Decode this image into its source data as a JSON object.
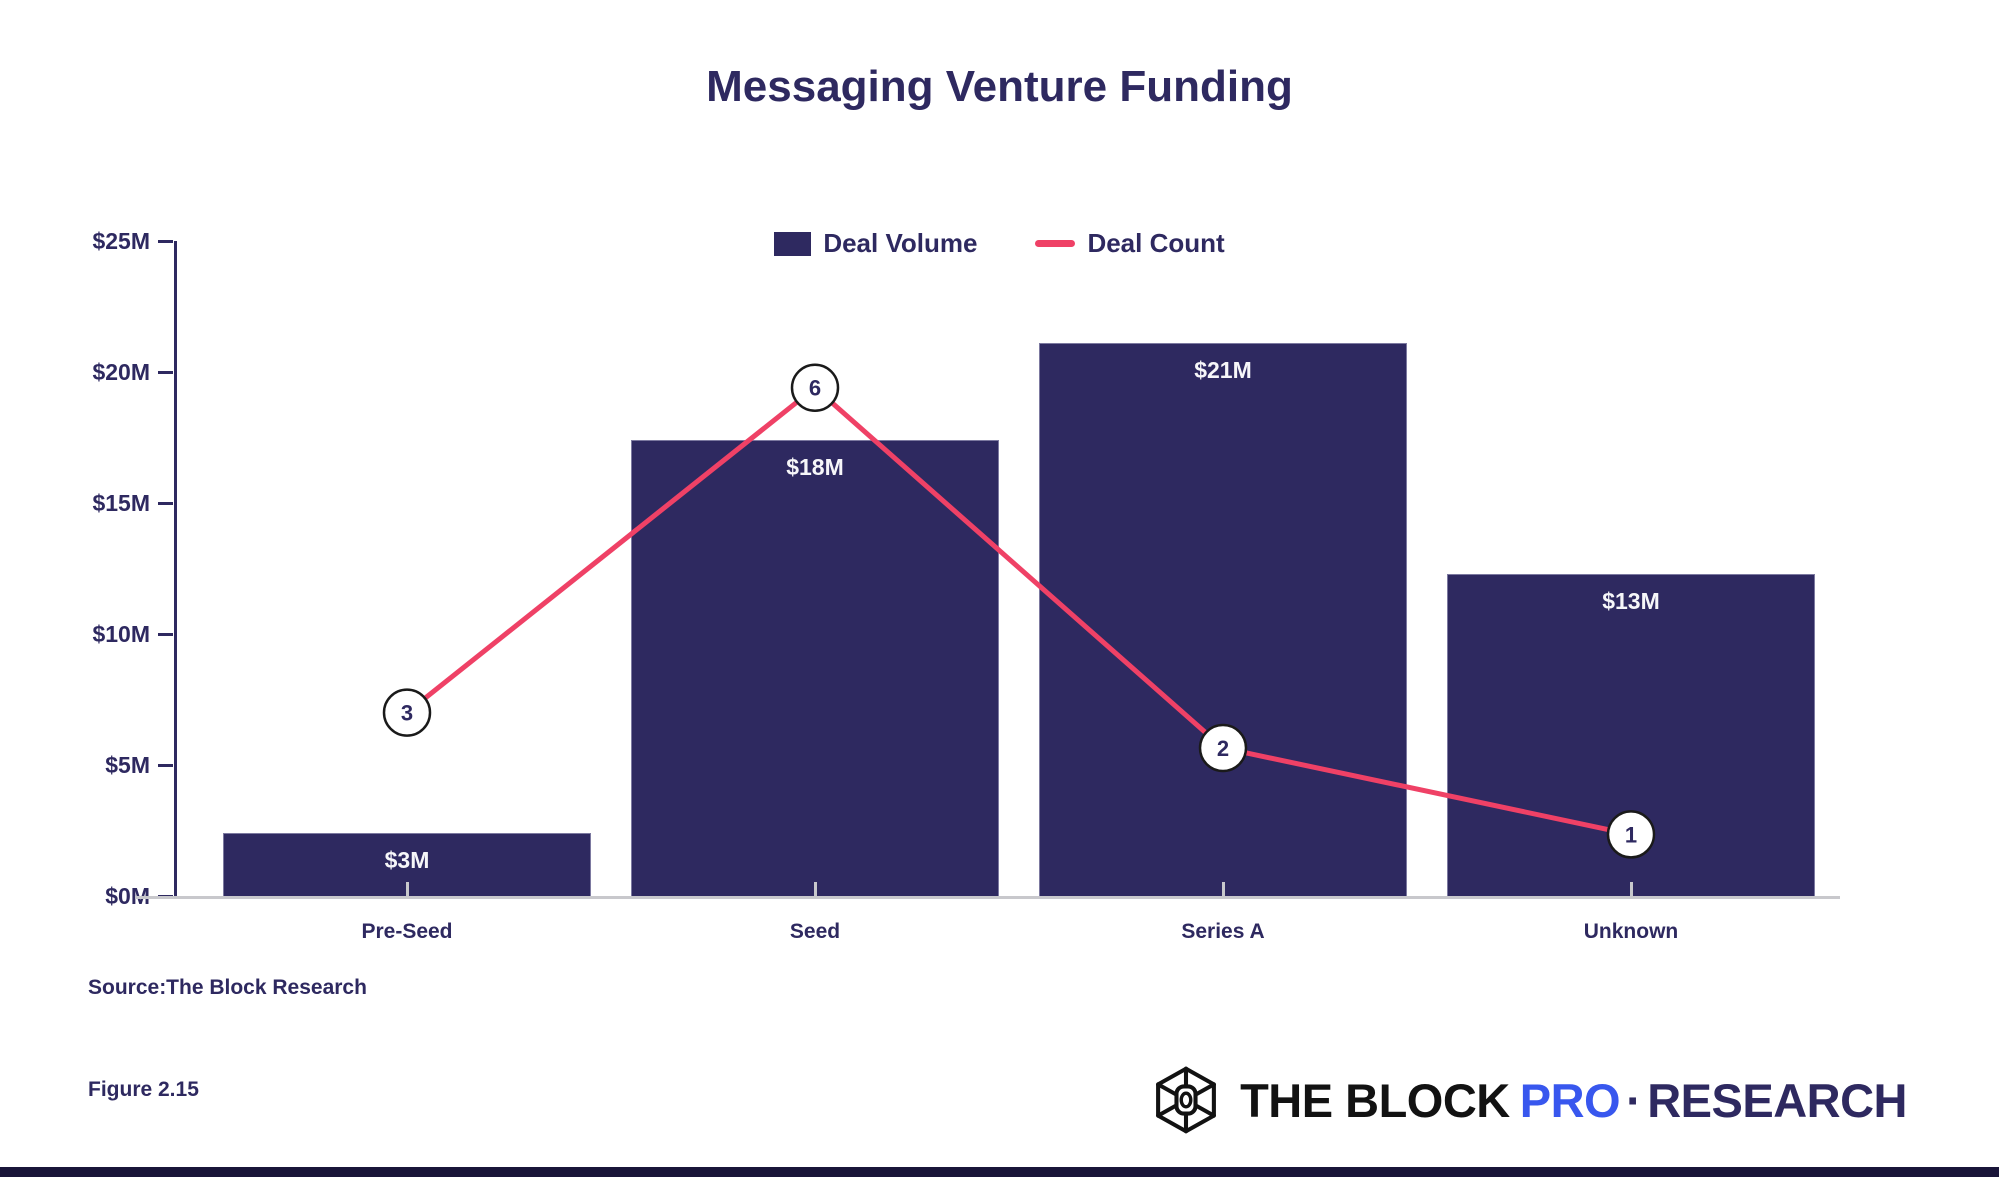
{
  "header": {
    "title": "Messaging Venture Funding"
  },
  "legend": {
    "items": [
      {
        "label": "Deal Volume",
        "type": "swatch",
        "color": "#2e2960"
      },
      {
        "label": "Deal Count",
        "type": "line",
        "color": "#ef4166"
      }
    ]
  },
  "chart_data": {
    "type": "bar",
    "title": "Messaging Venture Funding",
    "categories": [
      "Pre-Seed",
      "Seed",
      "Series A",
      "Unknown"
    ],
    "series": [
      {
        "name": "Deal Volume",
        "type": "bar",
        "values_musd": [
          3,
          18,
          21,
          13
        ],
        "bar_labels": [
          "$3M",
          "$18M",
          "$21M",
          "$13M"
        ],
        "drawn_heights_musd": [
          2.4,
          17.4,
          21.1,
          12.3
        ],
        "color": "#2e2960"
      },
      {
        "name": "Deal Count",
        "type": "line",
        "values": [
          3,
          6,
          2,
          1
        ],
        "marker_y_musd": [
          7.0,
          19.4,
          5.65,
          2.35
        ],
        "color": "#ef4166"
      }
    ],
    "y_axis": {
      "tick_labels": [
        "$25M",
        "$20M",
        "$15M",
        "$10M",
        "$5M",
        "$0M"
      ],
      "tick_values": [
        25,
        20,
        15,
        10,
        5,
        0
      ],
      "range_musd": [
        0,
        25
      ]
    },
    "legend_position": "top-center",
    "grid": false
  },
  "footer": {
    "source": "Source:The Block Research",
    "figure": "Figure 2.15",
    "logo": {
      "the_block": "THE BLOCK",
      "pro": "PRO",
      "separator": "·",
      "research": "RESEARCH"
    }
  },
  "colors": {
    "background": "#ffffff",
    "navy": "#2e2960",
    "pink": "#ef4166",
    "gray": "#c8c8cc",
    "blue_pro": "#3857ee",
    "bar_label_text": "#f6f6f9",
    "marker_stroke": "#1a1a1a",
    "footer_bar": "#191539"
  }
}
